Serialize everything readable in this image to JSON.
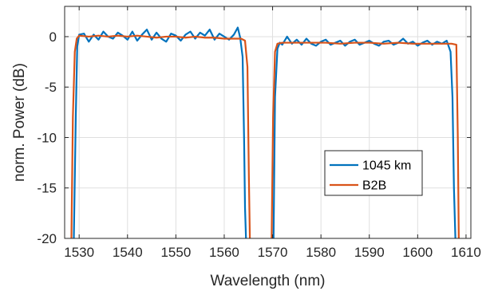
{
  "chart_data": {
    "type": "line",
    "title": "",
    "xlabel": "Wavelength (nm)",
    "ylabel": "norm. Power (dB)",
    "xlim": [
      1527,
      1611
    ],
    "ylim": [
      -20,
      3
    ],
    "xticks": [
      1530,
      1540,
      1550,
      1560,
      1570,
      1580,
      1590,
      1600,
      1610
    ],
    "yticks": [
      0,
      -5,
      -10,
      -15,
      -20
    ],
    "xtick_labels": [
      "1530",
      "1540",
      "1550",
      "1560",
      "1570",
      "1580",
      "1590",
      "1600",
      "1610"
    ],
    "ytick_labels": [
      "0",
      "-5",
      "-10",
      "-15",
      "-20"
    ],
    "grid": true,
    "legend_position": "lower-right",
    "series": [
      {
        "name": "1045 km",
        "color": "#0072BD",
        "x": [
          1528.9,
          1529.3,
          1529.6,
          1530.0,
          1531.0,
          1532.0,
          1533.0,
          1534.0,
          1535.0,
          1536.0,
          1537.0,
          1538.0,
          1539.0,
          1540.0,
          1541.0,
          1542.0,
          1543.0,
          1544.0,
          1545.0,
          1546.0,
          1547.0,
          1548.0,
          1549.0,
          1550.0,
          1551.0,
          1552.0,
          1553.0,
          1554.0,
          1555.0,
          1556.0,
          1557.0,
          1558.0,
          1559.0,
          1560.0,
          1561.0,
          1562.0,
          1562.8,
          1563.3,
          1563.8,
          1564.1,
          1564.3,
          1564.5,
          1564.6,
          null,
          1570.2,
          1570.5,
          1571.0,
          1571.5,
          1572.0,
          1573.0,
          1574.0,
          1575.0,
          1576.0,
          1577.0,
          1578.0,
          1579.0,
          1580.0,
          1581.0,
          1582.0,
          1583.0,
          1584.0,
          1585.0,
          1586.0,
          1587.0,
          1588.0,
          1589.0,
          1590.0,
          1591.0,
          1592.0,
          1593.0,
          1594.0,
          1595.0,
          1596.0,
          1597.0,
          1598.0,
          1599.0,
          1600.0,
          1601.0,
          1602.0,
          1603.0,
          1604.0,
          1605.0,
          1606.0,
          1606.8,
          1607.2,
          1607.5,
          1607.8
        ],
        "values": [
          -20,
          -8,
          -1,
          0.2,
          0.3,
          -0.5,
          0.2,
          -0.3,
          0.5,
          0.0,
          -0.2,
          0.4,
          0.1,
          -0.3,
          0.5,
          -0.4,
          0.2,
          0.7,
          -0.3,
          0.4,
          -0.2,
          -0.5,
          0.3,
          0.1,
          -0.4,
          0.2,
          0.5,
          -0.2,
          0.4,
          0.1,
          0.7,
          -0.3,
          0.3,
          0.0,
          -0.3,
          0.2,
          0.9,
          -0.1,
          -2.0,
          -10.0,
          -17.0,
          -20.0,
          -20.0,
          null,
          -20,
          -6,
          -1.2,
          -0.6,
          -0.8,
          0.0,
          -0.7,
          -0.3,
          -0.8,
          -0.2,
          -0.7,
          -0.9,
          -0.5,
          -0.3,
          -0.8,
          -0.6,
          -0.4,
          -0.9,
          -0.5,
          -0.3,
          -0.8,
          -0.6,
          -0.4,
          -0.7,
          -0.9,
          -0.5,
          -0.4,
          -0.8,
          -0.6,
          -0.2,
          -0.7,
          -0.5,
          -0.9,
          -0.6,
          -0.4,
          -0.8,
          -0.5,
          -0.7,
          -0.4,
          -1.5,
          -6.0,
          -15.0,
          -20.0
        ]
      },
      {
        "name": "B2B",
        "color": "#D95319",
        "x": [
          1528.4,
          1528.7,
          1529.1,
          1529.5,
          1530.0,
          1532.0,
          1534.0,
          1536.0,
          1538.0,
          1540.0,
          1542.0,
          1544.0,
          1546.0,
          1548.0,
          1550.0,
          1552.0,
          1554.0,
          1556.0,
          1558.0,
          1560.0,
          1562.0,
          1563.5,
          1564.3,
          1564.8,
          1565.1,
          1565.3,
          null,
          1569.8,
          1570.1,
          1570.5,
          1571.0,
          1572.0,
          1575.0,
          1578.0,
          1581.0,
          1584.0,
          1587.0,
          1590.0,
          1593.0,
          1596.0,
          1599.0,
          1602.0,
          1605.0,
          1607.0,
          1608.0,
          1608.3,
          1608.5
        ],
        "values": [
          -20,
          -8,
          -1.5,
          -0.2,
          0.1,
          0.0,
          0.1,
          0.0,
          0.1,
          0.0,
          0.1,
          0.0,
          -0.1,
          0.0,
          0.0,
          -0.1,
          0.0,
          -0.1,
          -0.1,
          -0.2,
          -0.2,
          -0.2,
          -0.4,
          -3.0,
          -14.0,
          -20.0,
          null,
          -20,
          -8,
          -1.5,
          -0.7,
          -0.6,
          -0.6,
          -0.6,
          -0.6,
          -0.7,
          -0.6,
          -0.6,
          -0.7,
          -0.6,
          -0.7,
          -0.7,
          -0.7,
          -0.7,
          -0.8,
          -10.0,
          -20.0
        ]
      }
    ]
  }
}
